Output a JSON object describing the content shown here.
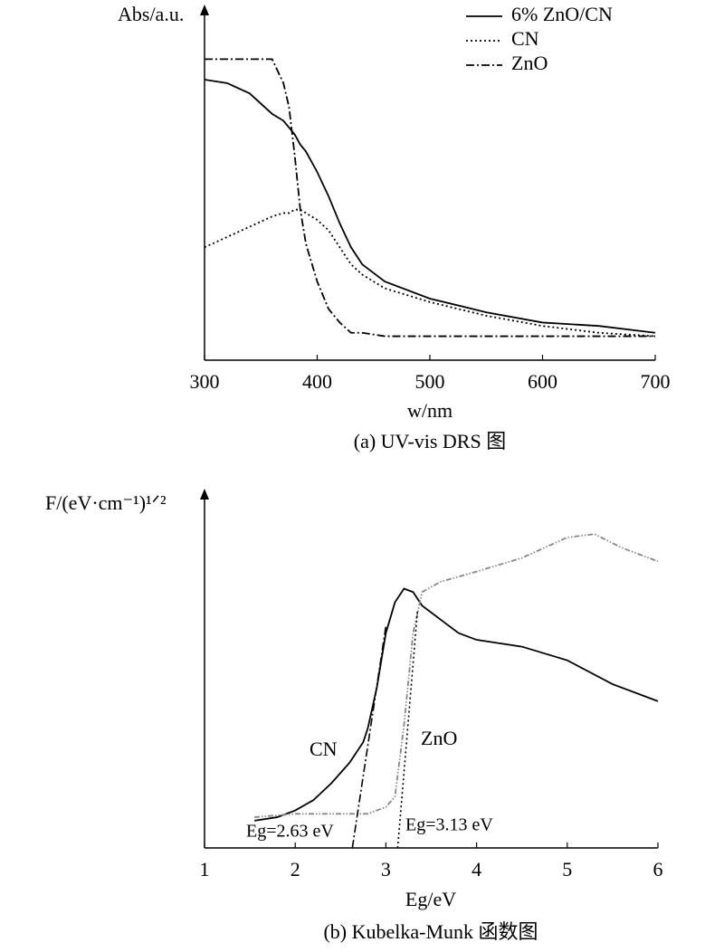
{
  "chart_data": [
    {
      "type": "line",
      "ylabel": "Abs/a.u.",
      "xlabel": "w/nm",
      "caption": "(a) UV-vis DRS 图",
      "x": [
        300,
        320,
        340,
        360,
        370,
        375,
        380,
        385,
        390,
        400,
        410,
        420,
        430,
        440,
        460,
        500,
        550,
        600,
        650,
        700
      ],
      "xlim": [
        300,
        700
      ],
      "xticks": [
        300,
        400,
        500,
        600,
        700
      ],
      "ylim": [
        0,
        100
      ],
      "legend": "top-right",
      "series": [
        {
          "name": "6% ZnO/CN",
          "color": "#000000",
          "dash": "solid",
          "values": [
            82,
            81,
            78,
            72,
            70,
            68,
            66,
            63,
            61,
            55,
            48,
            40,
            33,
            28,
            23,
            18,
            14,
            11,
            10,
            8
          ]
        },
        {
          "name": "CN",
          "color": "#000000",
          "dash": "dotted",
          "values": [
            33,
            36,
            39,
            42,
            43,
            43,
            44,
            44,
            43,
            41,
            38,
            33,
            28,
            25,
            21,
            17,
            13,
            10,
            8,
            7
          ]
        },
        {
          "name": "ZnO",
          "color": "#000000",
          "dash": "dashdot",
          "values": [
            88,
            88,
            88,
            88,
            81,
            74,
            60,
            44,
            34,
            23,
            15,
            11,
            8,
            8,
            7,
            7,
            7,
            7,
            7,
            7
          ]
        }
      ]
    },
    {
      "type": "line",
      "ylabel": "F/(eV·cm⁻¹)¹ᐟ²",
      "xlabel": "Eg/eV",
      "caption": "(b) Kubelka-Munk 函数图",
      "xlim": [
        1,
        6
      ],
      "xticks": [
        1,
        2,
        3,
        4,
        5,
        6
      ],
      "ylim": [
        0,
        100
      ],
      "series": [
        {
          "name": "CN",
          "color": "#000000",
          "dash": "solid",
          "x": [
            1.55,
            1.8,
            2.0,
            2.2,
            2.4,
            2.6,
            2.75,
            2.8,
            2.9,
            3.0,
            3.1,
            3.2,
            3.3,
            3.4,
            3.6,
            3.8,
            4.0,
            4.5,
            5.0,
            5.5,
            6.0
          ],
          "values": [
            8,
            9,
            11,
            14,
            19,
            25,
            31,
            35,
            47,
            63,
            72,
            76,
            75,
            71,
            67,
            63,
            61,
            59,
            55,
            48,
            43
          ]
        },
        {
          "name": "ZnO",
          "color": "#888888",
          "dash": "dashdotdot",
          "x": [
            1.55,
            2.0,
            2.5,
            2.8,
            3.0,
            3.1,
            3.2,
            3.3,
            3.4,
            3.6,
            4.0,
            4.5,
            5.0,
            5.3,
            5.6,
            6.0
          ],
          "values": [
            9,
            10,
            10,
            10,
            12,
            15,
            36,
            63,
            75,
            78,
            81,
            85,
            91,
            92,
            88,
            84
          ]
        }
      ],
      "tangents": [
        {
          "label": "Eg=2.63 eV",
          "x0": 2.63,
          "x1": 3.0,
          "y1": 65,
          "dash": "dashdot"
        },
        {
          "label": "Eg=3.13 eV",
          "x0": 3.13,
          "x1": 3.35,
          "y1": 70,
          "dash": "dotted"
        }
      ]
    }
  ]
}
